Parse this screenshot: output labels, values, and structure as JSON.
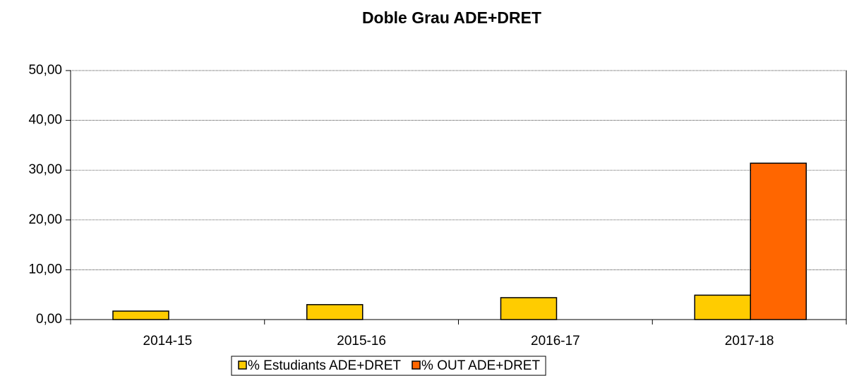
{
  "chart_data": {
    "type": "bar",
    "title": "Doble Grau ADE+DRET",
    "categories": [
      "2014-15",
      "2015-16",
      "2016-17",
      "2017-18"
    ],
    "series": [
      {
        "name": "% Estudiants ADE+DRET",
        "color": "#ffcc00",
        "values": [
          1.7,
          3.0,
          4.4,
          4.9
        ]
      },
      {
        "name": "% OUT ADE+DRET",
        "color": "#ff6600",
        "values": [
          0,
          0,
          0,
          31.4
        ]
      }
    ],
    "ylim": [
      0,
      50
    ],
    "yticks": [
      {
        "value": 0,
        "label": "0,00"
      },
      {
        "value": 10,
        "label": "10,00"
      },
      {
        "value": 20,
        "label": "20,00"
      },
      {
        "value": 30,
        "label": "30,00"
      },
      {
        "value": 40,
        "label": "40,00"
      },
      {
        "value": 50,
        "label": "50,00"
      }
    ],
    "grid": true,
    "legend": "bottom"
  }
}
